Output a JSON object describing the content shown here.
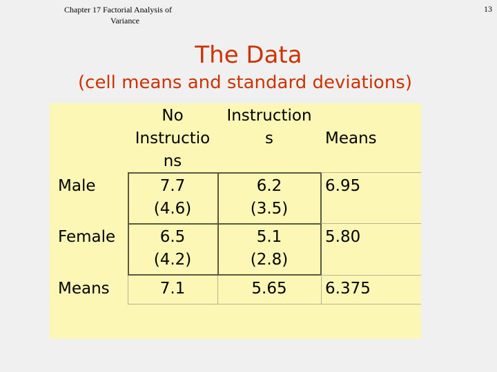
{
  "header": {
    "chapter_line1": "Chapter 17  Factorial Analysis of",
    "chapter_line2": "Variance",
    "page_number": "13"
  },
  "title": "The Data",
  "subtitle": "(cell means and standard deviations)",
  "table": {
    "columns": {
      "col1": [
        "No",
        "Instructio",
        "ns"
      ],
      "col2": [
        "Instruction",
        "s"
      ],
      "col3": "Means"
    },
    "rows": [
      {
        "label": "Male",
        "col1": [
          "7.7",
          "(4.6)"
        ],
        "col2": [
          "6.2",
          "(3.5)"
        ],
        "means": "6.95"
      },
      {
        "label": "Female",
        "col1": [
          "6.5",
          "(4.2)"
        ],
        "col2": [
          "5.1",
          "(2.8)"
        ],
        "means": "5.80"
      },
      {
        "label": "Means",
        "col1": [
          "7.1"
        ],
        "col2": [
          "5.65"
        ],
        "means": "6.375"
      }
    ]
  },
  "colors": {
    "accent": "#cc3300",
    "table_bg": "#fcf7b4",
    "page_bg": "#f0f0f0"
  }
}
